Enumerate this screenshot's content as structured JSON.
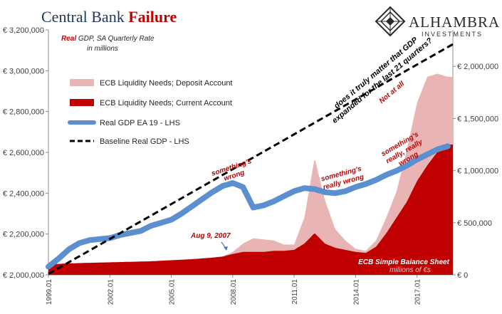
{
  "header": {
    "title_part1": "Central Bank ",
    "title_part2": "Failure"
  },
  "logo": {
    "name": "Alhambra",
    "subtitle": "INVESTMENTS",
    "icon": "alhambra-diamond-logo"
  },
  "chart_data": {
    "type": "bar+line",
    "subtitle_real": "Real",
    "subtitle_rest": " GDP, SA Quarterly Rate",
    "subtitle_line2": "in millions",
    "left_axis": {
      "min": 2000000,
      "max": 3200000,
      "ticks": [
        2000000,
        2200000,
        2400000,
        2600000,
        2800000,
        3000000,
        3200000
      ],
      "tick_labels": [
        "€ 2,000,000",
        "€ 2,200,000",
        "€ 2,400,000",
        "€ 2,600,000",
        "€ 2,800,000",
        "€ 3,000,000",
        "€ 3,200,000"
      ]
    },
    "right_axis": {
      "min": 0,
      "max": 2350000,
      "ticks": [
        0,
        500000,
        1000000,
        1500000,
        2000000
      ],
      "tick_labels": [
        "€ 0",
        "€ 500,000",
        "€ 1,000,000",
        "€ 1,500,000",
        "€ 2,000,000"
      ],
      "label_title": "ECB Simple Balance Sheet",
      "label_units": "millions of €s"
    },
    "x_axis": {
      "min": 1999.0,
      "max": 2018.75,
      "ticks": [
        1999,
        2002,
        2005,
        2008,
        2011,
        2014,
        2017
      ],
      "tick_labels": [
        "1999.01",
        "2002.01",
        "2005.01",
        "2008.01",
        "2011.01",
        "2014.01",
        "2017.01"
      ]
    },
    "legend": [
      {
        "label": "ECB Liquidity Needs; Deposit Account",
        "color": "#e8b4b4",
        "kind": "bar"
      },
      {
        "label": "ECB Liquidity Needs; Current Account",
        "color": "#c00000",
        "kind": "bar"
      },
      {
        "label": "Real GDP EA 19 - LHS",
        "color": "#5b8fd0",
        "kind": "line"
      },
      {
        "label": "Baseline Real GDP - LHS",
        "color": "#000000",
        "kind": "dashed"
      }
    ],
    "series": [
      {
        "name": "Real GDP EA 19 - LHS",
        "axis": "left",
        "x": [
          1999.0,
          1999.5,
          2000.0,
          2000.5,
          2001.0,
          2001.5,
          2002.0,
          2002.5,
          2003.0,
          2003.5,
          2004.0,
          2004.5,
          2005.0,
          2005.5,
          2006.0,
          2006.5,
          2007.0,
          2007.5,
          2008.0,
          2008.5,
          2009.0,
          2009.5,
          2010.0,
          2010.5,
          2011.0,
          2011.5,
          2012.0,
          2012.5,
          2013.0,
          2013.5,
          2014.0,
          2014.5,
          2015.0,
          2015.5,
          2016.0,
          2016.5,
          2017.0,
          2017.5,
          2018.0,
          2018.5
        ],
        "values": [
          2040000,
          2080000,
          2125000,
          2155000,
          2170000,
          2175000,
          2180000,
          2195000,
          2205000,
          2215000,
          2240000,
          2255000,
          2270000,
          2300000,
          2335000,
          2370000,
          2405000,
          2435000,
          2450000,
          2430000,
          2330000,
          2340000,
          2360000,
          2385000,
          2410000,
          2425000,
          2420000,
          2405000,
          2400000,
          2410000,
          2430000,
          2445000,
          2465000,
          2490000,
          2510000,
          2535000,
          2565000,
          2590000,
          2615000,
          2630000
        ]
      },
      {
        "name": "Baseline Real GDP - LHS",
        "axis": "left",
        "x": [
          1999.0,
          2018.75
        ],
        "values": [
          2005000,
          3130000
        ]
      },
      {
        "name": "ECB Liquidity Needs; Current Account",
        "axis": "right",
        "x": [
          1999.0,
          2000.0,
          2001.0,
          2002.0,
          2003.0,
          2004.0,
          2005.0,
          2006.0,
          2007.0,
          2007.5,
          2008.0,
          2008.5,
          2009.0,
          2009.5,
          2010.0,
          2010.5,
          2011.0,
          2011.5,
          2012.0,
          2012.5,
          2013.0,
          2013.5,
          2014.0,
          2014.5,
          2015.0,
          2015.5,
          2016.0,
          2016.5,
          2017.0,
          2017.5,
          2018.0,
          2018.5
        ],
        "values": [
          100000,
          110000,
          115000,
          120000,
          125000,
          130000,
          140000,
          150000,
          165000,
          175000,
          200000,
          220000,
          220000,
          220000,
          230000,
          230000,
          240000,
          300000,
          400000,
          300000,
          260000,
          240000,
          220000,
          210000,
          270000,
          400000,
          550000,
          700000,
          900000,
          1050000,
          1180000,
          1250000
        ]
      },
      {
        "name": "ECB Liquidity Needs; Deposit Account",
        "axis": "right",
        "x": [
          1999.0,
          2007.5,
          2008.0,
          2008.5,
          2009.0,
          2009.5,
          2010.0,
          2010.5,
          2011.0,
          2011.5,
          2012.0,
          2012.5,
          2013.0,
          2013.5,
          2014.0,
          2014.5,
          2015.0,
          2015.5,
          2016.0,
          2016.5,
          2017.0,
          2017.5,
          2018.0,
          2018.5
        ],
        "values": [
          0,
          0,
          20000,
          80000,
          130000,
          120000,
          100000,
          60000,
          50000,
          250000,
          720000,
          420000,
          180000,
          90000,
          30000,
          20000,
          60000,
          150000,
          250000,
          500000,
          750000,
          850000,
          750000,
          650000
        ]
      }
    ],
    "annotations": [
      {
        "text": "Aug 9, 2007",
        "style": "red",
        "lines": [
          "Aug 9, 2007"
        ]
      },
      {
        "text": "something's wrong",
        "style": "red",
        "lines": [
          "something's",
          "wrong"
        ]
      },
      {
        "text": "something's really wrong",
        "style": "red",
        "lines": [
          "something's",
          "really wrong"
        ]
      },
      {
        "text": "something's really, really wrong",
        "style": "red",
        "lines": [
          "something's",
          "really, really",
          "wrong"
        ]
      },
      {
        "text": "does it truly matter that GDP expanded for the last 21 quarters?",
        "style": "black",
        "lines": [
          "does it truly matter that GDP",
          "expanded for the last 21 quarters?"
        ]
      },
      {
        "text": "Not at all",
        "style": "red",
        "lines": [
          "Not at all"
        ]
      }
    ],
    "grid": false
  }
}
